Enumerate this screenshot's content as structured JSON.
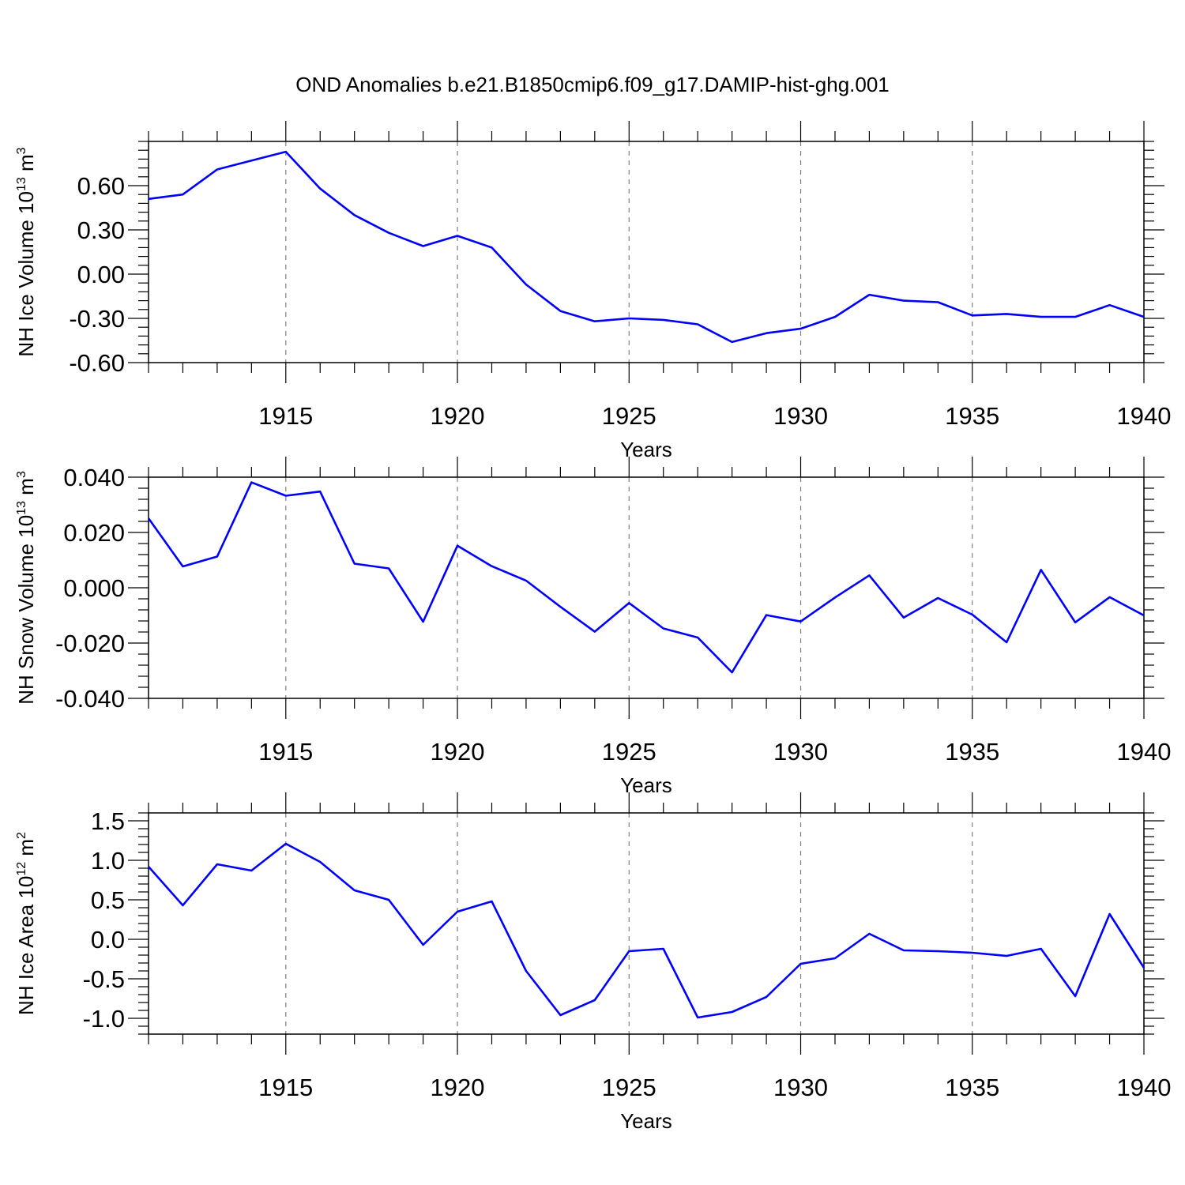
{
  "title": "OND Anomalies b.e21.B1850cmip6.f09_g17.DAMIP-hist-ghg.001",
  "colors": {
    "line": "#0000ff",
    "axis": "#000000",
    "grid": "#808080"
  },
  "chart_data": [
    {
      "type": "line",
      "ylabel": "NH Ice Volume",
      "ylabel_unit_base": "10",
      "ylabel_unit_exp": "13",
      "ylabel_unit_suffix": "m",
      "ylabel_unit_suffix_exp": "3",
      "xlabel": "Years",
      "xlim": [
        1911,
        1940
      ],
      "ylim": [
        -0.6,
        0.9
      ],
      "yticks": [
        -0.6,
        -0.3,
        0.0,
        0.3,
        0.6
      ],
      "ytick_labels": [
        "-0.60",
        "-0.30",
        "0.00",
        "0.30",
        "0.60"
      ],
      "xticks": [
        1915,
        1920,
        1925,
        1930,
        1935,
        1940
      ],
      "xtick_labels": [
        "1915",
        "1920",
        "1925",
        "1930",
        "1935",
        "1940"
      ],
      "grid": "vertical dashed at major x ticks",
      "x": [
        1911,
        1912,
        1913,
        1914,
        1915,
        1916,
        1917,
        1918,
        1919,
        1920,
        1921,
        1922,
        1923,
        1924,
        1925,
        1926,
        1927,
        1928,
        1929,
        1930,
        1931,
        1932,
        1933,
        1934,
        1935,
        1936,
        1937,
        1938,
        1939,
        1940
      ],
      "series": [
        {
          "values": [
            0.51,
            0.54,
            0.71,
            0.77,
            0.83,
            0.58,
            0.4,
            0.28,
            0.19,
            0.26,
            0.18,
            -0.07,
            -0.25,
            -0.32,
            -0.3,
            -0.31,
            -0.34,
            -0.46,
            -0.4,
            -0.37,
            -0.29,
            -0.14,
            -0.18,
            -0.19,
            -0.28,
            -0.27,
            -0.29,
            -0.29,
            -0.21,
            -0.29
          ]
        }
      ]
    },
    {
      "type": "line",
      "ylabel": "NH Snow Volume",
      "ylabel_unit_base": "10",
      "ylabel_unit_exp": "13",
      "ylabel_unit_suffix": "m",
      "ylabel_unit_suffix_exp": "3",
      "xlabel": "Years",
      "xlim": [
        1911,
        1940
      ],
      "ylim": [
        -0.04,
        0.04
      ],
      "yticks": [
        -0.04,
        -0.02,
        0.0,
        0.02,
        0.04
      ],
      "ytick_labels": [
        "-0.040",
        "-0.020",
        "0.000",
        "0.020",
        "0.040"
      ],
      "xticks": [
        1915,
        1920,
        1925,
        1930,
        1935,
        1940
      ],
      "xtick_labels": [
        "1915",
        "1920",
        "1925",
        "1930",
        "1935",
        "1940"
      ],
      "grid": "vertical dashed at major x ticks",
      "x": [
        1911,
        1912,
        1913,
        1914,
        1915,
        1916,
        1917,
        1918,
        1919,
        1920,
        1921,
        1922,
        1923,
        1924,
        1925,
        1926,
        1927,
        1928,
        1929,
        1930,
        1931,
        1932,
        1933,
        1934,
        1935,
        1936,
        1937,
        1938,
        1939,
        1940
      ],
      "series": [
        {
          "values": [
            0.0251,
            0.0077,
            0.0113,
            0.0381,
            0.0333,
            0.0348,
            0.0087,
            0.007,
            -0.0123,
            0.0152,
            0.0078,
            0.0026,
            -0.0069,
            -0.0159,
            -0.0055,
            -0.0147,
            -0.018,
            -0.0306,
            -0.0099,
            -0.0122,
            -0.0035,
            0.0045,
            -0.0108,
            -0.0037,
            -0.0097,
            -0.0197,
            0.0065,
            -0.0125,
            -0.0034,
            -0.01
          ]
        }
      ]
    },
    {
      "type": "line",
      "ylabel": "NH Ice Area",
      "ylabel_unit_base": "10",
      "ylabel_unit_exp": "12",
      "ylabel_unit_suffix": "m",
      "ylabel_unit_suffix_exp": "2",
      "xlabel": "Years",
      "xlim": [
        1911,
        1940
      ],
      "ylim": [
        -1.2,
        1.6
      ],
      "yticks": [
        -1.0,
        -0.5,
        0.0,
        0.5,
        1.0,
        1.5
      ],
      "ytick_labels": [
        "-1.0",
        "-0.5",
        "0.0",
        "0.5",
        "1.0",
        "1.5"
      ],
      "xticks": [
        1915,
        1920,
        1925,
        1930,
        1935,
        1940
      ],
      "xtick_labels": [
        "1915",
        "1920",
        "1925",
        "1930",
        "1935",
        "1940"
      ],
      "grid": "vertical dashed at major x ticks",
      "x": [
        1911,
        1912,
        1913,
        1914,
        1915,
        1916,
        1917,
        1918,
        1919,
        1920,
        1921,
        1922,
        1923,
        1924,
        1925,
        1926,
        1927,
        1928,
        1929,
        1930,
        1931,
        1932,
        1933,
        1934,
        1935,
        1936,
        1937,
        1938,
        1939,
        1940
      ],
      "series": [
        {
          "values": [
            0.92,
            0.43,
            0.95,
            0.87,
            1.21,
            0.98,
            0.62,
            0.5,
            -0.07,
            0.35,
            0.48,
            -0.4,
            -0.96,
            -0.77,
            -0.15,
            -0.12,
            -0.99,
            -0.92,
            -0.73,
            -0.31,
            -0.24,
            0.07,
            -0.14,
            -0.15,
            -0.17,
            -0.21,
            -0.12,
            -0.72,
            0.32,
            -0.36
          ]
        }
      ]
    }
  ]
}
